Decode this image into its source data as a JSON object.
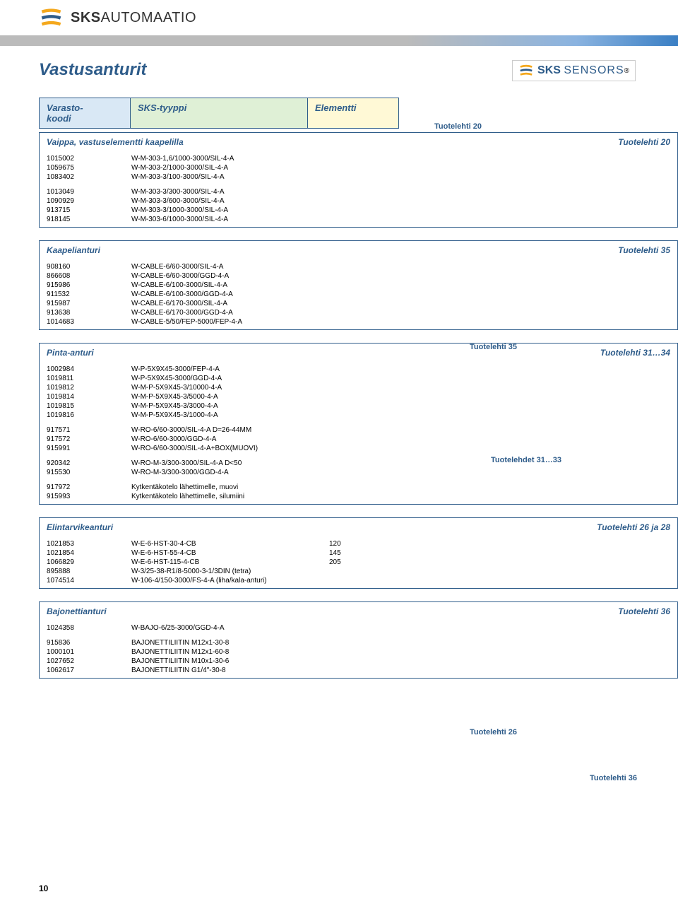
{
  "header": {
    "brand": "SKS",
    "brand_suffix": "AUTOMAATIO"
  },
  "title": "Vastusanturit",
  "sensors_brand": "SKS",
  "sensors_text": "SENSORS",
  "page_num": "10",
  "columns": {
    "code": "Varasto-\nkoodi",
    "type": "SKS-tyyppi",
    "elem": "Elementti"
  },
  "side_labels": {
    "t20": "Tuotelehti 20",
    "t35": "Tuotelehti 35",
    "t3133": "Tuotelehdet 31…33",
    "t26": "Tuotelehti 26",
    "t36": "Tuotelehti 36"
  },
  "sections": [
    {
      "title": "Vaippa, vastuselementti kaapelilla",
      "ref": "Tuotelehti 20",
      "groups": [
        [
          [
            "1015002",
            "W-M-303-1,6/1000-3000/SIL-4-A"
          ],
          [
            "1059675",
            "W-M-303-2/1000-3000/SIL-4-A"
          ],
          [
            "1083402",
            "W-M-303-3/100-3000/SIL-4-A"
          ]
        ],
        [
          [
            "1013049",
            "W-M-303-3/300-3000/SIL-4-A"
          ],
          [
            "1090929",
            "W-M-303-3/600-3000/SIL-4-A"
          ],
          [
            "913715",
            "W-M-303-3/1000-3000/SIL-4-A"
          ],
          [
            "918145",
            "W-M-303-6/1000-3000/SIL-4-A"
          ]
        ]
      ]
    },
    {
      "title": "Kaapelianturi",
      "ref": "Tuotelehti 35",
      "groups": [
        [
          [
            "908160",
            "W-CABLE-6/60-3000/SIL-4-A"
          ],
          [
            "866608",
            "W-CABLE-6/60-3000/GGD-4-A"
          ],
          [
            "915986",
            "W-CABLE-6/100-3000/SIL-4-A"
          ],
          [
            "911532",
            "W-CABLE-6/100-3000/GGD-4-A"
          ],
          [
            "915987",
            "W-CABLE-6/170-3000/SIL-4-A"
          ],
          [
            "913638",
            "W-CABLE-6/170-3000/GGD-4-A"
          ],
          [
            "1014683",
            "W-CABLE-5/50/FEP-5000/FEP-4-A"
          ]
        ]
      ]
    },
    {
      "title": "Pinta-anturi",
      "ref": "Tuotelehti 31…34",
      "groups": [
        [
          [
            "1002984",
            "W-P-5X9X45-3000/FEP-4-A"
          ],
          [
            "1019811",
            "W-P-5X9X45-3000/GGD-4-A"
          ],
          [
            "1019812",
            "W-M-P-5X9X45-3/10000-4-A"
          ],
          [
            "1019814",
            "W-M-P-5X9X45-3/5000-4-A"
          ],
          [
            "1019815",
            "W-M-P-5X9X45-3/3000-4-A"
          ],
          [
            "1019816",
            "W-M-P-5X9X45-3/1000-4-A"
          ]
        ],
        [
          [
            "917571",
            "W-RO-6/60-3000/SIL-4-A D=26-44MM"
          ],
          [
            "917572",
            "W-RO-6/60-3000/GGD-4-A"
          ],
          [
            "915991",
            "W-RO-6/60-3000/SIL-4-A+BOX(MUOVI)"
          ]
        ],
        [
          [
            "920342",
            "W-RO-M-3/300-3000/SIL-4-A D<50"
          ],
          [
            "915530",
            "W-RO-M-3/300-3000/GGD-4-A"
          ]
        ],
        [
          [
            "917972",
            "Kytkentäkotelo lähettimelle, muovi"
          ],
          [
            "915993",
            "Kytkentäkotelo lähettimelle, silumiini"
          ]
        ]
      ]
    },
    {
      "title": "Elintarvikeanturi",
      "ref": "Tuotelehti 26 ja 28",
      "groups": [
        [
          [
            "1021853",
            "W-E-6-HST-30-4-CB",
            "120"
          ],
          [
            "1021854",
            "W-E-6-HST-55-4-CB",
            "145"
          ],
          [
            "1066829",
            "W-E-6-HST-115-4-CB",
            "205"
          ],
          [
            "895888",
            "W-3/25-38-R1/8-5000-3-1/3DIN (tetra)",
            ""
          ],
          [
            "1074514",
            "W-106-4/150-3000/FS-4-A (liha/kala-anturi)",
            ""
          ]
        ]
      ]
    },
    {
      "title": "Bajonettianturi",
      "ref": "Tuotelehti 36",
      "groups": [
        [
          [
            "1024358",
            "W-BAJO-6/25-3000/GGD-4-A"
          ]
        ],
        [
          [
            "915836",
            "BAJONETTILIITIN M12x1-30-8"
          ],
          [
            "1000101",
            "BAJONETTILIITIN M12x1-60-8"
          ],
          [
            "1027652",
            "BAJONETTILIITIN M10x1-30-6"
          ],
          [
            "1062617",
            "BAJONETTILIITIN G1/4\"-30-8"
          ]
        ]
      ]
    }
  ]
}
